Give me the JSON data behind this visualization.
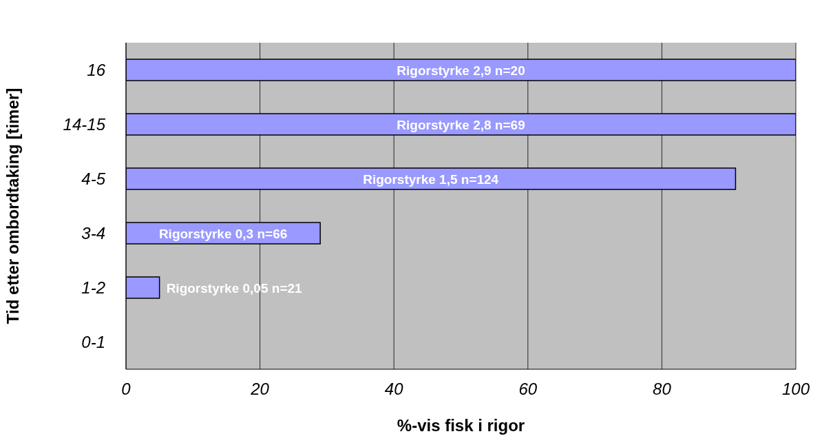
{
  "chart_data": {
    "type": "bar",
    "orientation": "horizontal",
    "xlabel": "%-vis fisk i rigor",
    "ylabel": "Tid etter ombordtaking   [timer]",
    "categories": [
      "16",
      "14-15",
      "4-5",
      "3-4",
      "1-2",
      "0-1"
    ],
    "values": [
      100,
      100,
      91,
      29,
      5,
      null
    ],
    "value_labels": [
      "Rigorstyrke 2,9 n=20",
      "Rigorstyrke 2,8 n=69",
      "Rigorstyrke 1,5 n=124",
      "Rigorstyrke 0,3 n=66",
      "Rigorstyrke 0,05 n=21",
      null
    ],
    "color": "#9999ff",
    "xlim": [
      0,
      100
    ],
    "xticks": [
      0,
      20,
      40,
      60,
      80,
      100
    ],
    "grid": "x"
  }
}
